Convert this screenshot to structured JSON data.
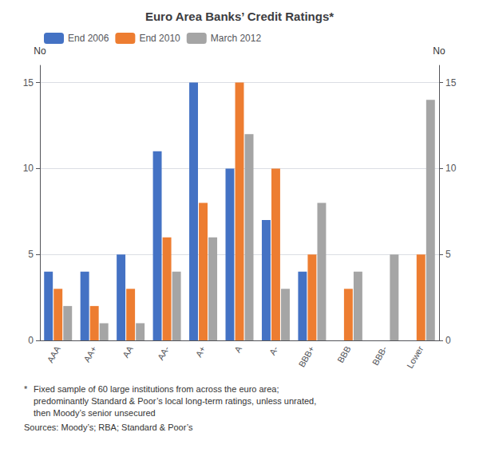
{
  "chart_data": {
    "type": "bar",
    "title": "Euro Area Banks’ Credit Ratings*",
    "categories": [
      "AAA",
      "AA+",
      "AA",
      "AA-",
      "A+",
      "A",
      "A-",
      "BBB+",
      "BBB",
      "BBB-",
      "Lower"
    ],
    "series": [
      {
        "name": "End 2006",
        "color": "#4472C4",
        "values": [
          4,
          4,
          5,
          11,
          15,
          10,
          7,
          4,
          0,
          0,
          0
        ]
      },
      {
        "name": "End 2010",
        "color": "#ED7D31",
        "values": [
          3,
          2,
          3,
          6,
          8,
          15,
          10,
          5,
          3,
          0,
          5
        ]
      },
      {
        "name": "March 2012",
        "color": "#A5A5A5",
        "values": [
          2,
          1,
          1,
          4,
          6,
          12,
          3,
          8,
          4,
          5,
          14
        ]
      }
    ],
    "ylabel": "No",
    "y2label": "No",
    "ylim": [
      0,
      16
    ],
    "yticks": [
      0,
      5,
      10,
      15
    ],
    "y2lim": [
      0,
      16
    ],
    "y2ticks": [
      0,
      5,
      10,
      15
    ],
    "grid": true,
    "legend": "upper left",
    "annotations": [
      "*",
      "Fixed sample of 60 large institutions from across the euro area;",
      "predominantly Standard & Poor’s local long-term ratings, unless unrated,",
      "then Moody’s senior unsecured",
      "Sources: Moody’s; RBA; Standard & Poor’s"
    ]
  }
}
